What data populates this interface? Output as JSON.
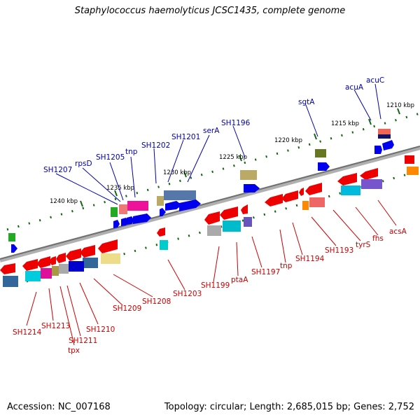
{
  "title": "Staphylococcus haemolyticus JCSC1435, complete genome",
  "accession": "Accession: NC_007168",
  "topology": "Topology: circular; Length: 2,685,015 bp; Genes: 2,752",
  "colors": {
    "backbone": "#808080",
    "top_label": "#0000aa",
    "bottom_label": "#cc0000",
    "tick": "#116611"
  },
  "kbp_labels": [
    "1210 kbp",
    "1215 kbp",
    "1220 kbp",
    "1225 kbp",
    "1230 kbp",
    "1235 kbp",
    "1240 kbp"
  ],
  "top_labels": [
    "acuC",
    "acuA",
    "sgtA",
    "SH1196",
    "serA",
    "SH1201",
    "SH1202",
    "tnp",
    "SH1205",
    "rpsD",
    "SH1207"
  ],
  "bottom_labels": [
    "acsA",
    "fhs",
    "tyrS",
    "SH1193",
    "SH1194",
    "tnp",
    "SH1197",
    "ptaA",
    "SH1199",
    "SH1203",
    "SH1208",
    "SH1209",
    "SH1210",
    "SH1211",
    "tpx",
    "SH1213",
    "SH1214"
  ]
}
